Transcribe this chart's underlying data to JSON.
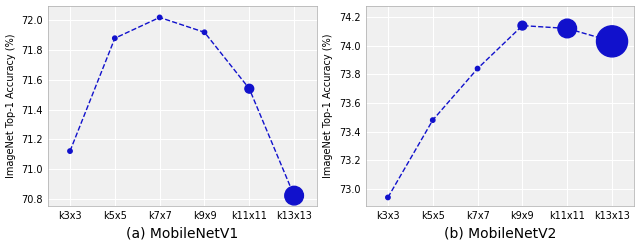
{
  "categories": [
    "k3x3",
    "k5x5",
    "k7x7",
    "k9x9",
    "k11x11",
    "k13x13"
  ],
  "mv1_values": [
    71.12,
    71.88,
    72.02,
    71.92,
    71.54,
    70.82
  ],
  "mv1_sizes": [
    10,
    10,
    10,
    10,
    40,
    180
  ],
  "mv1_ylim": [
    70.75,
    72.1
  ],
  "mv1_yticks": [
    70.8,
    71.0,
    71.2,
    71.4,
    71.6,
    71.8,
    72.0
  ],
  "mv1_title": "(a) MobileNetV1",
  "mv2_values": [
    72.94,
    73.48,
    73.84,
    74.14,
    74.12,
    74.03
  ],
  "mv2_sizes": [
    10,
    10,
    10,
    40,
    180,
    500
  ],
  "mv2_ylim": [
    72.88,
    74.28
  ],
  "mv2_yticks": [
    73.0,
    73.2,
    73.4,
    73.6,
    73.8,
    74.0,
    74.2
  ],
  "mv2_title": "(b) MobileNetV2",
  "ylabel": "ImageNet Top-1 Accuracy (%)",
  "line_color": "#1111cc",
  "marker_color": "#1111cc",
  "background_color": "#f0f0f0",
  "grid_color": "#ffffff",
  "title_fontsize": 10,
  "label_fontsize": 7,
  "tick_fontsize": 7
}
